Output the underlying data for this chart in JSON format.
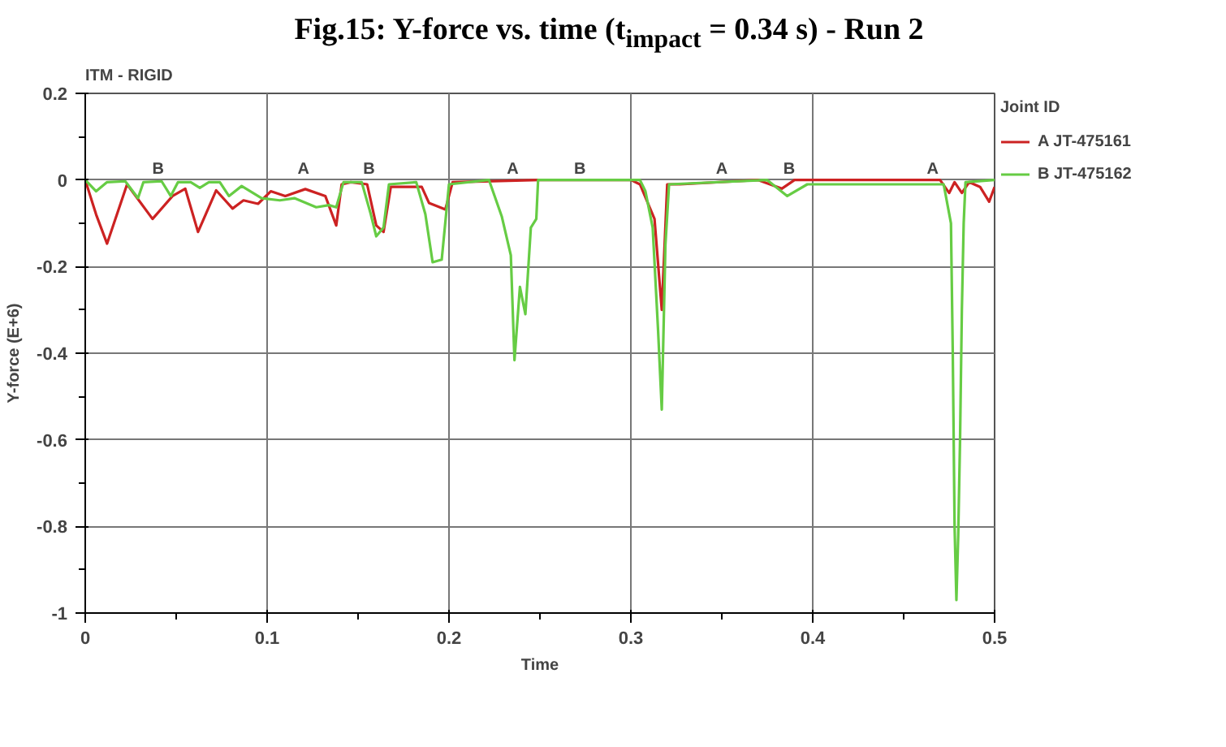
{
  "chart_data": {
    "type": "line",
    "title": "Fig.15: Y-force vs. time (t$_{impact}$ = 0.34 s) - Run 2",
    "subtitle": "ITM - RIGID",
    "xlabel": "Time",
    "ylabel": "Y-force (E+6)",
    "legend_title": "Joint ID",
    "xlim": [
      0,
      0.5
    ],
    "ylim": [
      -1,
      0.2
    ],
    "xticks": [
      0,
      0.1,
      0.2,
      0.3,
      0.4,
      0.5
    ],
    "yticks": [
      -1,
      -0.8,
      -0.6,
      -0.4,
      -0.2,
      0,
      0.2
    ],
    "grid": true,
    "legend": "top right",
    "line_style": "solid",
    "series": [
      {
        "name": "A JT-475161",
        "color": "#cc2222",
        "x": [
          0,
          0.006,
          0.012,
          0.023,
          0.037,
          0.048,
          0.055,
          0.062,
          0.072,
          0.081,
          0.087,
          0.095,
          0.102,
          0.11,
          0.121,
          0.132,
          0.138,
          0.141,
          0.146,
          0.155,
          0.16,
          0.164,
          0.168,
          0.185,
          0.189,
          0.198,
          0.202,
          0.25,
          0.3,
          0.305,
          0.313,
          0.317,
          0.32,
          0.327,
          0.37,
          0.383,
          0.39,
          0.47,
          0.475,
          0.478,
          0.482,
          0.486,
          0.492,
          0.497,
          0.5
        ],
        "values": [
          0,
          -0.08,
          -0.147,
          -0.01,
          -0.09,
          -0.037,
          -0.02,
          -0.12,
          -0.024,
          -0.066,
          -0.047,
          -0.055,
          -0.026,
          -0.037,
          -0.021,
          -0.037,
          -0.105,
          -0.01,
          -0.005,
          -0.01,
          -0.105,
          -0.12,
          -0.016,
          -0.016,
          -0.053,
          -0.068,
          -0.005,
          0,
          0,
          -0.01,
          -0.09,
          -0.3,
          -0.01,
          -0.01,
          0,
          -0.02,
          0,
          0,
          -0.03,
          -0.005,
          -0.03,
          -0.005,
          -0.016,
          -0.05,
          -0.016
        ]
      },
      {
        "name": "B JT-475162",
        "color": "#66cc44",
        "x": [
          0,
          0.006,
          0.012,
          0.022,
          0.029,
          0.032,
          0.042,
          0.047,
          0.051,
          0.058,
          0.063,
          0.068,
          0.074,
          0.079,
          0.086,
          0.097,
          0.107,
          0.115,
          0.127,
          0.134,
          0.138,
          0.142,
          0.152,
          0.157,
          0.16,
          0.164,
          0.167,
          0.182,
          0.187,
          0.191,
          0.196,
          0.2,
          0.222,
          0.229,
          0.234,
          0.236,
          0.239,
          0.242,
          0.245,
          0.248,
          0.249,
          0.305,
          0.308,
          0.312,
          0.315,
          0.317,
          0.319,
          0.321,
          0.375,
          0.386,
          0.397,
          0.472,
          0.476,
          0.477,
          0.478,
          0.479,
          0.48,
          0.481,
          0.482,
          0.483,
          0.484,
          0.5
        ],
        "values": [
          0,
          -0.026,
          -0.005,
          -0.003,
          -0.042,
          -0.005,
          -0.003,
          -0.037,
          -0.005,
          -0.005,
          -0.018,
          -0.005,
          -0.005,
          -0.037,
          -0.014,
          -0.042,
          -0.047,
          -0.042,
          -0.063,
          -0.058,
          -0.063,
          -0.005,
          -0.005,
          -0.079,
          -0.13,
          -0.11,
          -0.01,
          -0.005,
          -0.079,
          -0.19,
          -0.184,
          -0.01,
          0,
          -0.084,
          -0.174,
          -0.416,
          -0.247,
          -0.31,
          -0.11,
          -0.09,
          0,
          0,
          -0.026,
          -0.11,
          -0.35,
          -0.53,
          -0.15,
          -0.01,
          0,
          -0.037,
          -0.01,
          -0.01,
          -0.1,
          -0.4,
          -0.8,
          -0.97,
          -0.82,
          -0.6,
          -0.3,
          -0.1,
          -0.005,
          0
        ]
      }
    ],
    "annotations": [
      {
        "text": "B",
        "x": 0.04,
        "y": 0
      },
      {
        "text": "A",
        "x": 0.12,
        "y": 0
      },
      {
        "text": "B",
        "x": 0.156,
        "y": 0
      },
      {
        "text": "A",
        "x": 0.235,
        "y": 0
      },
      {
        "text": "B",
        "x": 0.272,
        "y": 0
      },
      {
        "text": "A",
        "x": 0.35,
        "y": 0
      },
      {
        "text": "B",
        "x": 0.387,
        "y": 0
      },
      {
        "text": "A",
        "x": 0.466,
        "y": 0
      }
    ]
  }
}
